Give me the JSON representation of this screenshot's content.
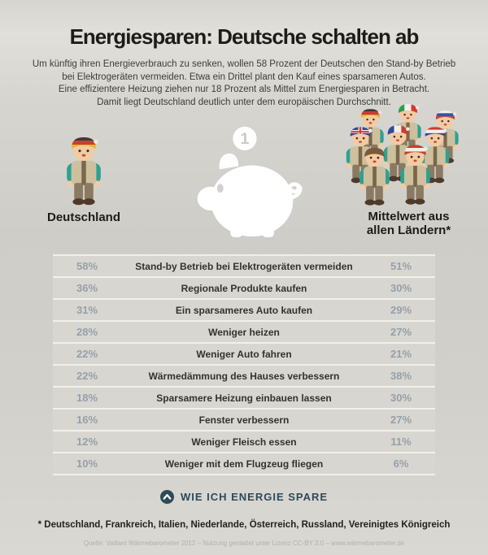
{
  "header": {
    "title": "Energiesparen: Deutsche schalten ab",
    "intro_lines": [
      "Um künftig ihren Energieverbrauch zu senken, wollen 58 Prozent der Deutschen den Stand-by Betrieb",
      "bei Elektrogeräten vermeiden. Etwa ein Drittel plant den Kauf eines sparsameren Autos.",
      "Eine effizientere Heizung ziehen nur 18 Prozent als Mittel zum Energiesparen in Betracht.",
      "Damit liegt Deutschland deutlich unter dem europäischen Durchschnitt."
    ]
  },
  "comparison": {
    "left_label": "Deutschland",
    "right_label": "Mittelwert aus\nallen Ländern*",
    "coin_value": "1",
    "piggy_icon": "piggy-bank-icon",
    "left_figure": {
      "name": "germany",
      "cap": {
        "dir": "h",
        "colors": [
          "#3b3b39",
          "#c63f31",
          "#eab72d"
        ]
      }
    },
    "group_figures": [
      {
        "name": "germany",
        "cap": {
          "dir": "h",
          "colors": [
            "#3b3b39",
            "#c63f31",
            "#eab72d"
          ]
        }
      },
      {
        "name": "italy",
        "cap": {
          "dir": "v",
          "colors": [
            "#2e9e4f",
            "#f2f0ec",
            "#cf3b2e"
          ]
        }
      },
      {
        "name": "russia",
        "cap": {
          "dir": "h",
          "colors": [
            "#f2f0ec",
            "#3556a0",
            "#cf3b2e"
          ]
        }
      },
      {
        "name": "united-kingdom",
        "cap": {
          "dir": "uk",
          "colors": [
            "#31499c",
            "#f2f0ec",
            "#cf3b2e"
          ]
        }
      },
      {
        "name": "france",
        "cap": {
          "dir": "v",
          "colors": [
            "#31499c",
            "#f2f0ec",
            "#cf3b2e"
          ]
        }
      },
      {
        "name": "netherlands",
        "cap": {
          "dir": "h",
          "colors": [
            "#cf3b2e",
            "#f2f0ec",
            "#31499c"
          ]
        }
      },
      {
        "name": "kid",
        "cap": null
      },
      {
        "name": "austria",
        "cap": {
          "dir": "h",
          "colors": [
            "#cf3b2e",
            "#f2f0ec",
            "#cf3b2e"
          ]
        }
      }
    ]
  },
  "table": {
    "rows": [
      {
        "de": "58%",
        "label": "Stand-by Betrieb bei Elektrogeräten vermeiden",
        "avg": "51%"
      },
      {
        "de": "36%",
        "label": "Regionale Produkte kaufen",
        "avg": "30%"
      },
      {
        "de": "31%",
        "label": "Ein sparsameres Auto kaufen",
        "avg": "29%"
      },
      {
        "de": "28%",
        "label": "Weniger heizen",
        "avg": "27%"
      },
      {
        "de": "22%",
        "label": "Weniger Auto fahren",
        "avg": "21%"
      },
      {
        "de": "22%",
        "label": "Wärmedämmung des Hauses verbessern",
        "avg": "38%"
      },
      {
        "de": "18%",
        "label": "Sparsamere Heizung einbauen lassen",
        "avg": "30%"
      },
      {
        "de": "16%",
        "label": "Fenster verbessern",
        "avg": "27%"
      },
      {
        "de": "12%",
        "label": "Weniger Fleisch essen",
        "avg": "11%"
      },
      {
        "de": "10%",
        "label": "Weniger mit dem Flugzeug fliegen",
        "avg": "6%"
      }
    ]
  },
  "footer": {
    "cta_icon": "arrow-up-circle-icon",
    "cta_label": "WIE ICH ENERGIE SPARE",
    "footnote": "* Deutschland, Frankreich, Italien, Niederlande, Österreich, Russland, Vereinigtes Königreich",
    "source": "Quelle: Vaillant Wärmebarometer 2012 – Nutzung gestattet unter Lizenz CC-BY 3.0 – www.wärmebarometer.de"
  },
  "colors": {
    "background": "#d4d2cd",
    "row_background": "#d8d6d1",
    "row_separator": "#f1f0ed",
    "percent_text": "#96a0a7",
    "label_text": "#33322d",
    "accent_dark_teal": "#2d4b58",
    "piggy_white": "#ffffff"
  },
  "chart_data": {
    "type": "table",
    "title": "Energiesparen: Deutsche schalten ab",
    "categories": [
      "Stand-by Betrieb bei Elektrogeräten vermeiden",
      "Regionale Produkte kaufen",
      "Ein sparsameres Auto kaufen",
      "Weniger heizen",
      "Weniger Auto fahren",
      "Wärmedämmung des Hauses verbessern",
      "Sparsamere Heizung einbauen lassen",
      "Fenster verbessern",
      "Weniger Fleisch essen",
      "Weniger mit dem Flugzeug fliegen"
    ],
    "series": [
      {
        "name": "Deutschland",
        "values": [
          58,
          36,
          31,
          28,
          22,
          22,
          18,
          16,
          12,
          10
        ]
      },
      {
        "name": "Mittelwert aus allen Ländern",
        "values": [
          51,
          30,
          29,
          27,
          21,
          38,
          30,
          27,
          11,
          6
        ]
      }
    ],
    "unit": "%",
    "legend_position": "above-columns",
    "grid": false
  }
}
